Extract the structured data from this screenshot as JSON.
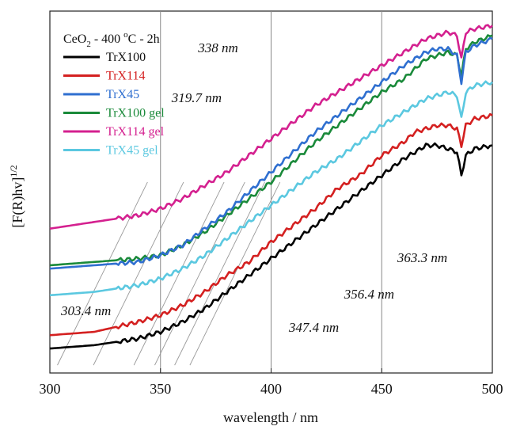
{
  "chart_data": {
    "type": "line",
    "title": "",
    "xlabel": "wavelength / nm",
    "ylabel": "[F(R)hv]^1/2",
    "xlim": [
      300,
      500
    ],
    "ylim": [
      0,
      1
    ],
    "x_ticks": [
      "300",
      "350",
      "400",
      "450",
      "500"
    ],
    "vertical_gridlines_at": [
      350,
      400,
      450
    ],
    "legend": {
      "placement": "top-left",
      "title_main": "CeO",
      "title_sub": "2",
      "title_rest": " - 400 ",
      "title_sup": "o",
      "title_end": "C - 2h"
    },
    "series": [
      {
        "name": "TrX100",
        "color": "#000000",
        "x": [
          300,
          320,
          340,
          350,
          360,
          370,
          380,
          390,
          400,
          410,
          420,
          430,
          440,
          450,
          460,
          465,
          470,
          475,
          480,
          484,
          486,
          488,
          492,
          500
        ],
        "values": [
          0.03,
          0.04,
          0.06,
          0.08,
          0.11,
          0.15,
          0.2,
          0.25,
          0.3,
          0.35,
          0.4,
          0.45,
          0.5,
          0.55,
          0.6,
          0.62,
          0.64,
          0.64,
          0.63,
          0.62,
          0.55,
          0.61,
          0.63,
          0.64
        ]
      },
      {
        "name": "TrX114",
        "color": "#d42020",
        "x": [
          300,
          320,
          340,
          350,
          360,
          370,
          380,
          390,
          400,
          410,
          420,
          430,
          440,
          450,
          460,
          465,
          470,
          475,
          480,
          484,
          486,
          488,
          492,
          500
        ],
        "values": [
          0.07,
          0.08,
          0.11,
          0.13,
          0.16,
          0.2,
          0.25,
          0.29,
          0.35,
          0.4,
          0.45,
          0.51,
          0.55,
          0.61,
          0.65,
          0.68,
          0.69,
          0.7,
          0.7,
          0.69,
          0.64,
          0.7,
          0.72,
          0.73
        ]
      },
      {
        "name": "TrX45",
        "color": "#2f6fd0",
        "x": [
          300,
          320,
          340,
          350,
          360,
          370,
          380,
          390,
          400,
          410,
          420,
          430,
          440,
          450,
          460,
          465,
          470,
          475,
          480,
          484,
          486,
          488,
          492,
          500
        ],
        "values": [
          0.27,
          0.28,
          0.29,
          0.31,
          0.34,
          0.39,
          0.44,
          0.5,
          0.56,
          0.62,
          0.68,
          0.73,
          0.78,
          0.83,
          0.88,
          0.9,
          0.92,
          0.93,
          0.93,
          0.91,
          0.83,
          0.92,
          0.94,
          0.96
        ]
      },
      {
        "name": "TrX100 gel",
        "color": "#1a8a3a",
        "x": [
          300,
          320,
          340,
          350,
          360,
          370,
          380,
          390,
          400,
          410,
          420,
          430,
          440,
          450,
          460,
          465,
          470,
          475,
          480,
          484,
          486,
          488,
          492,
          500
        ],
        "values": [
          0.28,
          0.29,
          0.3,
          0.31,
          0.34,
          0.38,
          0.43,
          0.48,
          0.53,
          0.59,
          0.65,
          0.7,
          0.75,
          0.8,
          0.84,
          0.87,
          0.9,
          0.91,
          0.92,
          0.91,
          0.85,
          0.93,
          0.95,
          0.97
        ]
      },
      {
        "name": "TrX114 gel",
        "color": "#d4208f",
        "x": [
          300,
          320,
          340,
          350,
          360,
          370,
          380,
          390,
          400,
          410,
          420,
          430,
          440,
          450,
          460,
          465,
          470,
          475,
          480,
          484,
          486,
          488,
          492,
          500
        ],
        "values": [
          0.39,
          0.41,
          0.43,
          0.45,
          0.48,
          0.52,
          0.56,
          0.61,
          0.66,
          0.71,
          0.76,
          0.8,
          0.84,
          0.88,
          0.92,
          0.94,
          0.96,
          0.97,
          0.98,
          0.97,
          0.9,
          0.98,
          0.99,
          1.0
        ]
      },
      {
        "name": "TrX45 gel",
        "color": "#5bc8e0",
        "x": [
          300,
          320,
          340,
          350,
          360,
          370,
          380,
          390,
          400,
          410,
          420,
          430,
          440,
          450,
          460,
          465,
          470,
          475,
          480,
          484,
          486,
          488,
          492,
          500
        ],
        "values": [
          0.19,
          0.2,
          0.22,
          0.24,
          0.27,
          0.31,
          0.36,
          0.41,
          0.46,
          0.51,
          0.56,
          0.6,
          0.65,
          0.7,
          0.74,
          0.76,
          0.78,
          0.79,
          0.8,
          0.79,
          0.72,
          0.8,
          0.82,
          0.83
        ]
      }
    ],
    "tangent_lines": [
      {
        "x0": 303.4,
        "slope_color": "#999999"
      },
      {
        "x0": 319.7,
        "slope_color": "#999999"
      },
      {
        "x0": 338,
        "slope_color": "#999999"
      },
      {
        "x0": 347.4,
        "slope_color": "#999999"
      },
      {
        "x0": 356.4,
        "slope_color": "#999999"
      },
      {
        "x0": 363.3,
        "slope_color": "#999999"
      }
    ],
    "annotations": [
      {
        "text": "338 nm",
        "x": 367,
        "y": 0.92
      },
      {
        "text": "319.7 nm",
        "x": 355,
        "y": 0.77
      },
      {
        "text": "303.4 nm",
        "x": 305,
        "y": 0.13
      },
      {
        "text": "363.3 nm",
        "x": 457,
        "y": 0.29
      },
      {
        "text": "356.4 nm",
        "x": 433,
        "y": 0.18
      },
      {
        "text": "347.4 nm",
        "x": 408,
        "y": 0.08
      }
    ]
  }
}
